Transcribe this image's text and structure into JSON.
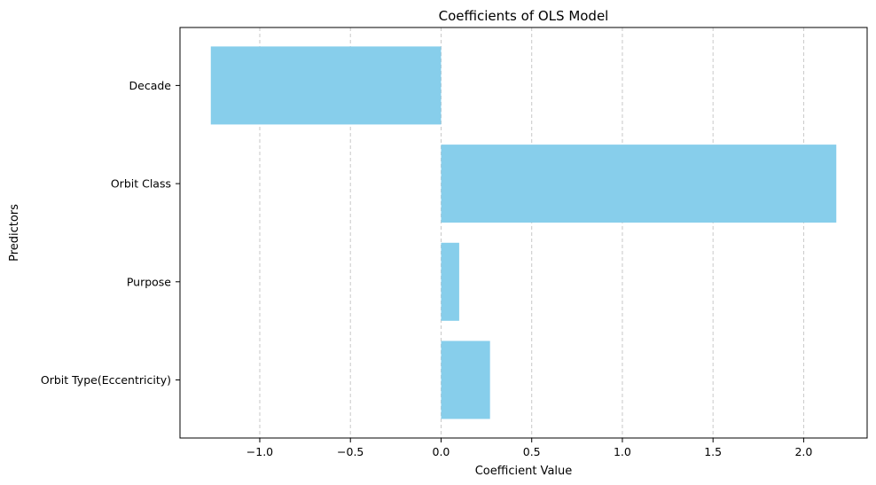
{
  "chart_data": {
    "type": "bar",
    "orientation": "horizontal",
    "title": "Coefficients of OLS Model",
    "xlabel": "Coefficient Value",
    "ylabel": "Predictors",
    "categories": [
      "Orbit Type(Eccentricity)",
      "Purpose",
      "Orbit Class",
      "Decade"
    ],
    "values": [
      0.27,
      0.1,
      2.18,
      -1.27
    ],
    "xlim": [
      -1.44,
      2.35
    ],
    "xticks": [
      -1.0,
      -0.5,
      0.0,
      0.5,
      1.0,
      1.5,
      2.0
    ],
    "xtick_labels": [
      "−1.0",
      "−0.5",
      "0.0",
      "0.5",
      "1.0",
      "1.5",
      "2.0"
    ],
    "grid": "x-axis dashed",
    "bar_color": "#87CEEB",
    "grid_color": "#c8c8c8"
  }
}
